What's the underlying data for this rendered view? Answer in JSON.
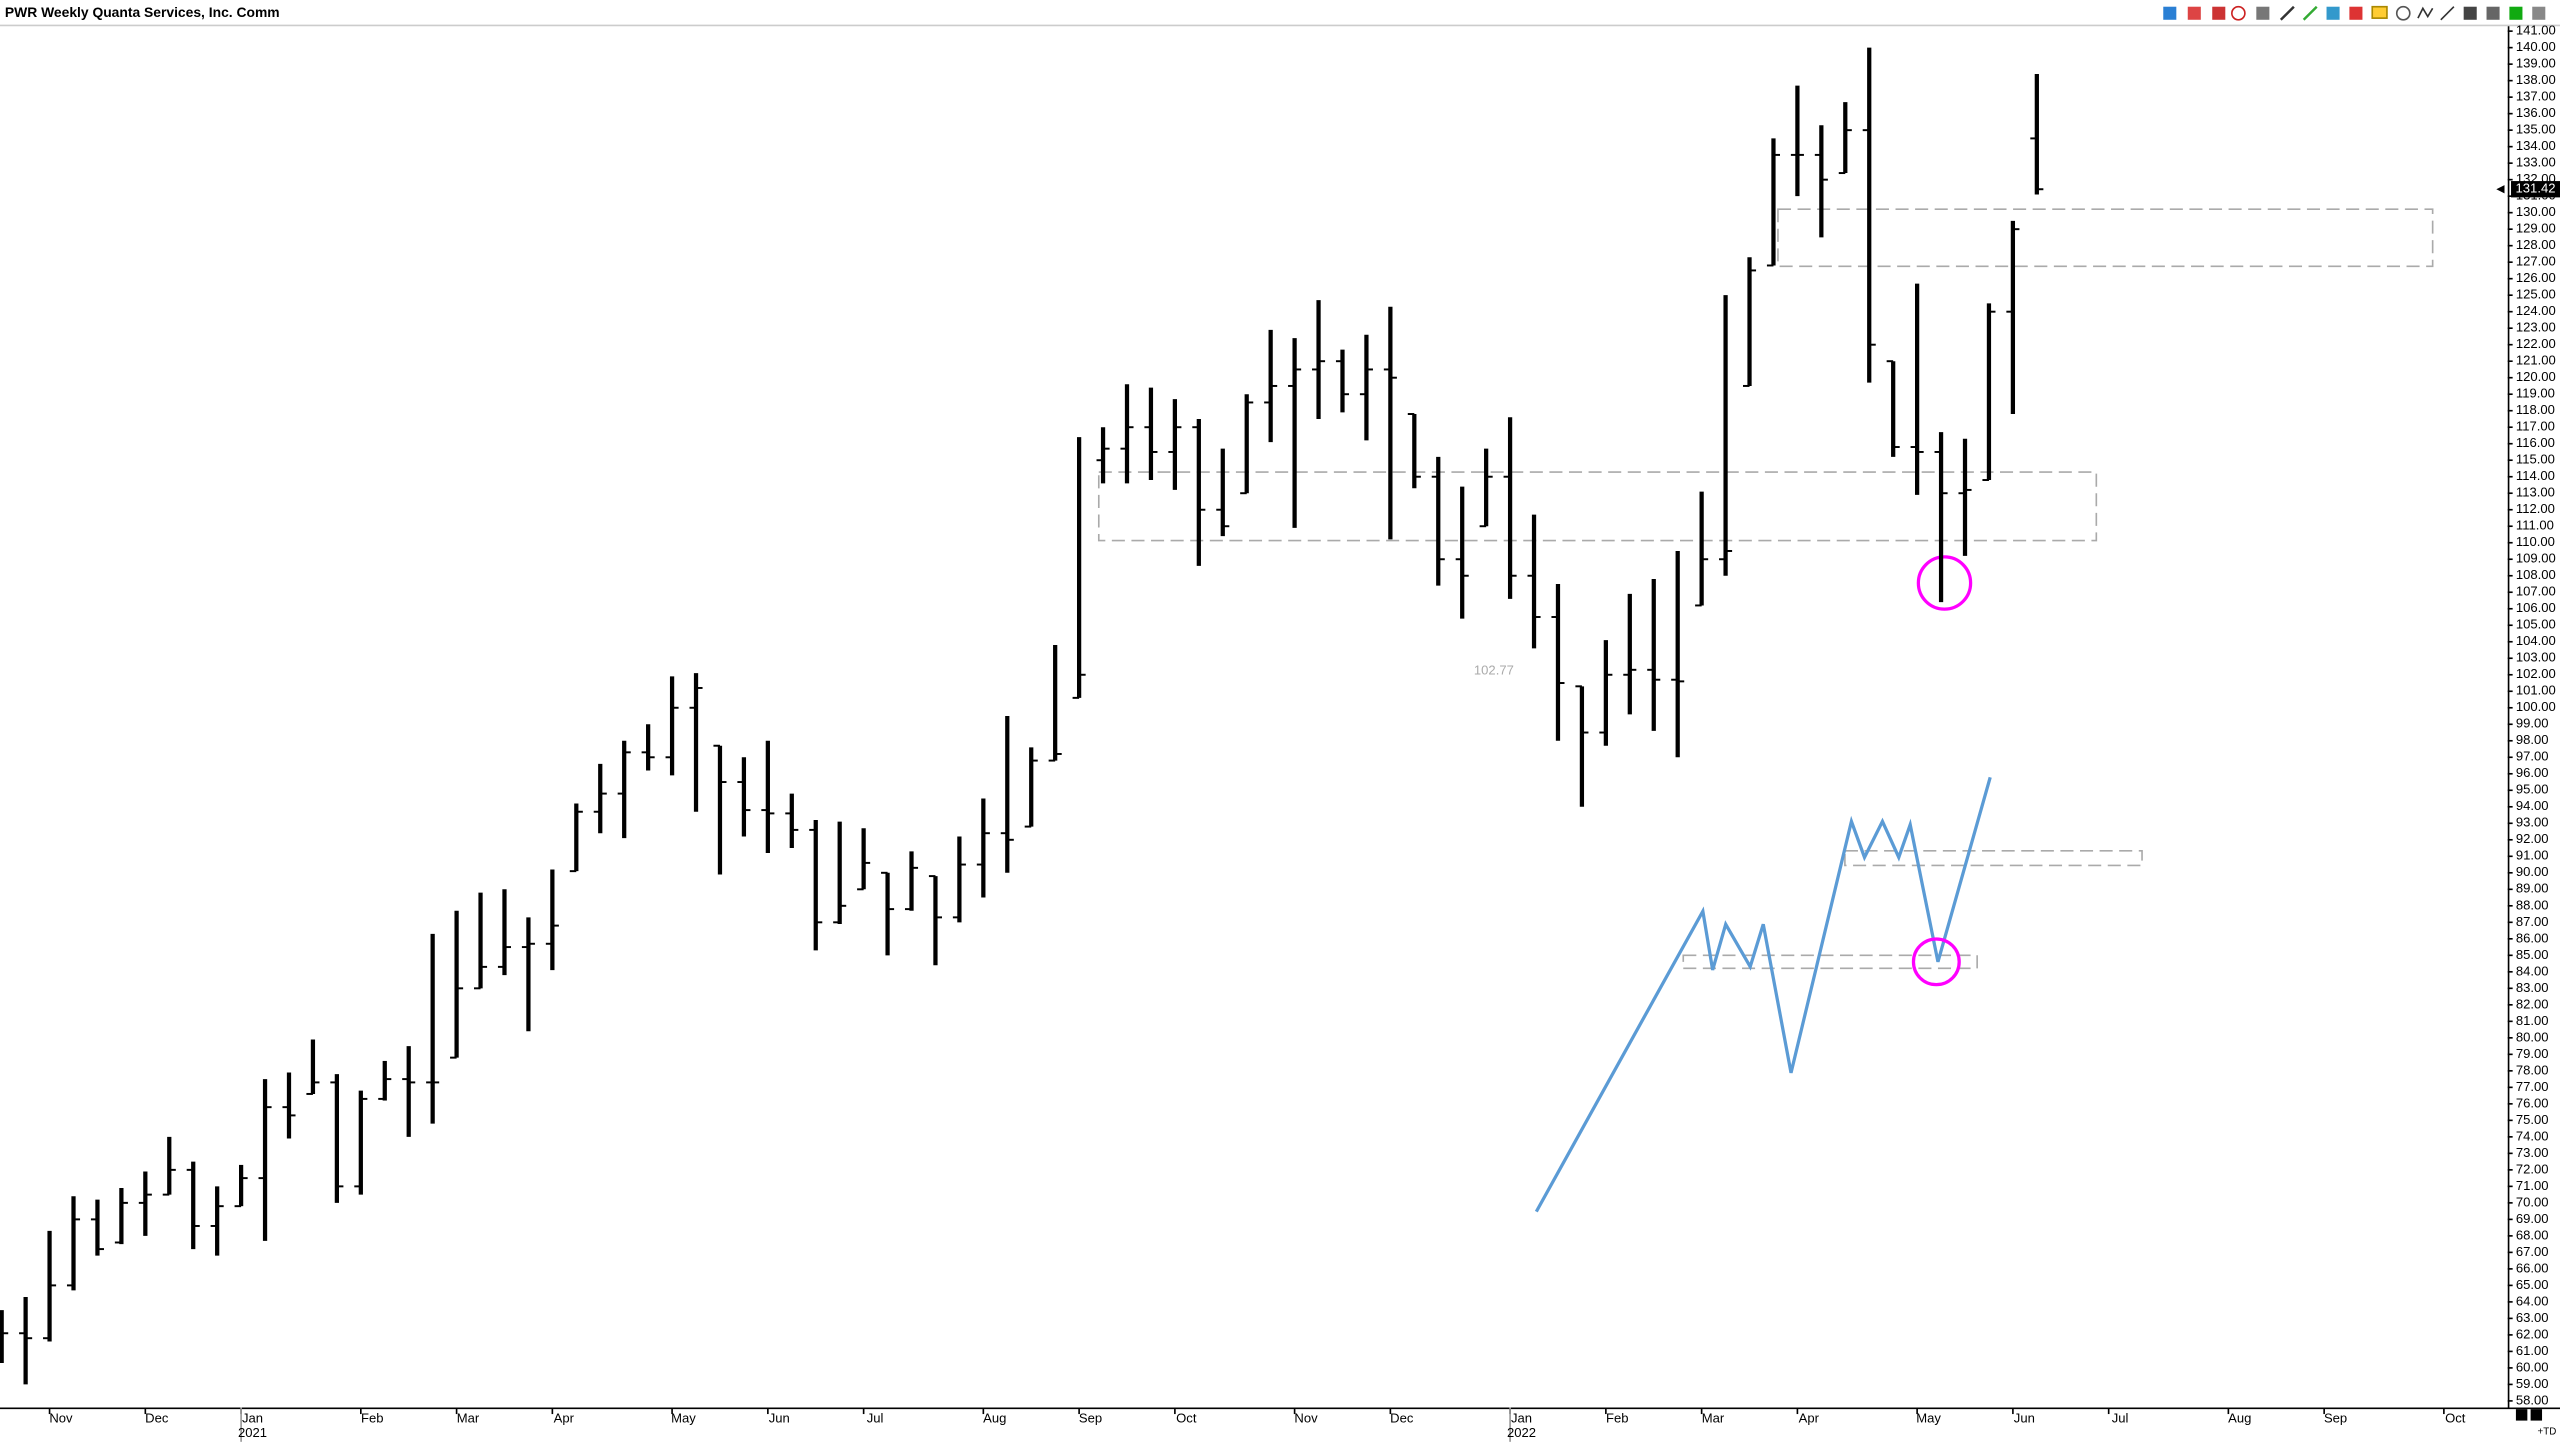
{
  "chart_data": {
    "type": "ohlc",
    "title": "PWR Weekly Quanta Services, Inc. Comm",
    "color": "#000000",
    "open": [
      61.5,
      62.1,
      61.8,
      65,
      69,
      67.6,
      70,
      70.5,
      72,
      68.6,
      69.8,
      71.5,
      75.8,
      76.6,
      77.3,
      71,
      76.3,
      77.5,
      77.3,
      78.8,
      83,
      84.3,
      85.5,
      85.7,
      90.1,
      93.7,
      94.8,
      97.3,
      97,
      100,
      97.7,
      95.5,
      93.8,
      93.6,
      92.6,
      87,
      89,
      90,
      87.8,
      89.8,
      87.3,
      90.5,
      92.4,
      92.8,
      96.8,
      100.6,
      115,
      115.7,
      117,
      115.5,
      117,
      112,
      113,
      118.5,
      119.5,
      120.5,
      121,
      119,
      120.5,
      117.8,
      114,
      109,
      111,
      114,
      108,
      105.5,
      101.3,
      98.5,
      102,
      102.3,
      101.7,
      106.2,
      109,
      119.5,
      126.8,
      133.5,
      133.5,
      132.4,
      135,
      121,
      115.8,
      115.5,
      113,
      113.8,
      124,
      134.5
    ],
    "high": [
      63.5,
      64.3,
      68.3,
      70.4,
      70.2,
      70.9,
      71.9,
      74,
      72.5,
      71,
      72.3,
      77.5,
      77.9,
      79.9,
      77.8,
      76.8,
      78.6,
      79.5,
      86.3,
      87.7,
      88.8,
      89,
      87.3,
      90.2,
      94.2,
      96.6,
      98,
      99,
      101.9,
      102.1,
      97.7,
      97,
      98,
      94.8,
      93.2,
      93.1,
      92.7,
      90,
      91.3,
      89.8,
      92.2,
      94.5,
      99.5,
      97.6,
      103.8,
      116.4,
      117,
      119.6,
      119.4,
      118.7,
      117.5,
      115.7,
      119,
      122.9,
      122.4,
      124.7,
      121.7,
      122.6,
      124.3,
      117.8,
      115.2,
      113.4,
      115.7,
      117.6,
      111.7,
      107.5,
      101.3,
      104.1,
      106.9,
      107.8,
      109.5,
      113.1,
      125,
      127.3,
      134.5,
      137.7,
      135.3,
      136.7,
      140,
      121,
      125.7,
      116.7,
      116.3,
      124.5,
      129.5,
      138.4
    ],
    "low": [
      60.3,
      59,
      61.6,
      64.7,
      66.8,
      67.5,
      68,
      70.5,
      67.2,
      66.8,
      69.8,
      67.7,
      73.9,
      76.6,
      70,
      70.5,
      76.2,
      74,
      74.8,
      78.8,
      83,
      83.8,
      80.4,
      84.1,
      90.1,
      92.4,
      92.1,
      96.2,
      95.9,
      93.7,
      89.9,
      92.2,
      91.2,
      91.5,
      85.3,
      86.9,
      89,
      85,
      87.7,
      84.4,
      87,
      88.5,
      90,
      92.8,
      96.8,
      100.6,
      113.6,
      113.6,
      113.8,
      113.2,
      108.6,
      110.4,
      113,
      116.1,
      110.9,
      117.5,
      117.9,
      116.2,
      110.2,
      113.3,
      107.4,
      105.4,
      111,
      106.6,
      103.6,
      98,
      94,
      97.7,
      99.6,
      98.6,
      97,
      106.2,
      108,
      119.5,
      126.8,
      131,
      128.5,
      132.4,
      119.7,
      115.2,
      112.9,
      106.4,
      109.2,
      113.8,
      117.8,
      131.1
    ],
    "close": [
      62.1,
      61.8,
      65,
      69,
      67.2,
      70,
      70.5,
      72,
      68.6,
      69.8,
      71.5,
      75.8,
      75.3,
      77.3,
      71,
      76.3,
      77.5,
      77.3,
      77.3,
      83,
      84.3,
      85.5,
      85.7,
      86.8,
      93.7,
      94.8,
      97.3,
      97,
      100,
      101.2,
      95.5,
      93.8,
      93.6,
      92.6,
      87,
      88,
      90.6,
      87.8,
      90.3,
      87.3,
      90.5,
      92.4,
      92,
      96.8,
      97.2,
      102,
      115.7,
      117,
      115.5,
      117,
      112,
      111,
      118.5,
      119.5,
      120.5,
      121,
      119,
      120.5,
      120,
      114,
      109,
      108,
      114,
      108,
      105.5,
      101.5,
      98.5,
      102,
      102.3,
      101.7,
      101.6,
      109,
      109.5,
      126.5,
      133.5,
      133.5,
      132,
      135,
      122,
      115.8,
      115.5,
      113,
      113.2,
      124,
      129,
      131.42
    ],
    "xlim": [
      -0.07,
      104.6
    ],
    "xticks": [
      {
        "value": 2,
        "label": "Nov"
      },
      {
        "value": 6,
        "label": "Dec"
      },
      {
        "value": 10,
        "label": "Jan"
      },
      {
        "value": 15,
        "label": "Feb"
      },
      {
        "value": 19,
        "label": "Mar"
      },
      {
        "value": 23,
        "label": "Apr"
      },
      {
        "value": 28,
        "label": "May"
      },
      {
        "value": 32,
        "label": "Jun"
      },
      {
        "value": 36,
        "label": "Jul"
      },
      {
        "value": 41,
        "label": "Aug"
      },
      {
        "value": 45,
        "label": "Sep"
      },
      {
        "value": 49,
        "label": "Oct"
      },
      {
        "value": 54,
        "label": "Nov"
      },
      {
        "value": 58,
        "label": "Dec"
      },
      {
        "value": 63,
        "label": "Jan"
      },
      {
        "value": 67,
        "label": "Feb"
      },
      {
        "value": 71,
        "label": "Mar"
      },
      {
        "value": 75,
        "label": "Apr"
      },
      {
        "value": 80,
        "label": "May"
      },
      {
        "value": 84,
        "label": "Jun"
      },
      {
        "value": 88,
        "label": "Jul"
      },
      {
        "value": 93,
        "label": "Aug"
      },
      {
        "value": 97,
        "label": "Sep"
      },
      {
        "value": 102,
        "label": "Oct"
      }
    ],
    "year_ticks": [
      {
        "value": 10,
        "label": "2021"
      },
      {
        "value": 63,
        "label": "2022"
      }
    ],
    "ylim": [
      57.5,
      141.5
    ],
    "yticks": [
      {
        "value": 58,
        "label": "58.00"
      },
      {
        "value": 59,
        "label": "59.00"
      },
      {
        "value": 60,
        "label": "60.00"
      },
      {
        "value": 61,
        "label": "61.00"
      },
      {
        "value": 62,
        "label": "62.00"
      },
      {
        "value": 63,
        "label": "63.00"
      },
      {
        "value": 64,
        "label": "64.00"
      },
      {
        "value": 65,
        "label": "65.00"
      },
      {
        "value": 66,
        "label": "66.00"
      },
      {
        "value": 67,
        "label": "67.00"
      },
      {
        "value": 68,
        "label": "68.00"
      },
      {
        "value": 69,
        "label": "69.00"
      },
      {
        "value": 70,
        "label": "70.00"
      },
      {
        "value": 71,
        "label": "71.00"
      },
      {
        "value": 72,
        "label": "72.00"
      },
      {
        "value": 73,
        "label": "73.00"
      },
      {
        "value": 74,
        "label": "74.00"
      },
      {
        "value": 75,
        "label": "75.00"
      },
      {
        "value": 76,
        "label": "76.00"
      },
      {
        "value": 77,
        "label": "77.00"
      },
      {
        "value": 78,
        "label": "78.00"
      },
      {
        "value": 79,
        "label": "79.00"
      },
      {
        "value": 80,
        "label": "80.00"
      },
      {
        "value": 81,
        "label": "81.00"
      },
      {
        "value": 82,
        "label": "82.00"
      },
      {
        "value": 83,
        "label": "83.00"
      },
      {
        "value": 84,
        "label": "84.00"
      },
      {
        "value": 85,
        "label": "85.00"
      },
      {
        "value": 86,
        "label": "86.00"
      },
      {
        "value": 87,
        "label": "87.00"
      },
      {
        "value": 88,
        "label": "88.00"
      },
      {
        "value": 89,
        "label": "89.00"
      },
      {
        "value": 90,
        "label": "90.00"
      },
      {
        "value": 91,
        "label": "91.00"
      },
      {
        "value": 92,
        "label": "92.00"
      },
      {
        "value": 93,
        "label": "93.00"
      },
      {
        "value": 94,
        "label": "94.00"
      },
      {
        "value": 95,
        "label": "95.00"
      },
      {
        "value": 96,
        "label": "96.00"
      },
      {
        "value": 97,
        "label": "97.00"
      },
      {
        "value": 98,
        "label": "98.00"
      },
      {
        "value": 99,
        "label": "99.00"
      },
      {
        "value": 100,
        "label": "100.00"
      },
      {
        "value": 101,
        "label": "101.00"
      },
      {
        "value": 102,
        "label": "102.00"
      },
      {
        "value": 103,
        "label": "103.00"
      },
      {
        "value": 104,
        "label": "104.00"
      },
      {
        "value": 105,
        "label": "105.00"
      },
      {
        "value": 106,
        "label": "106.00"
      },
      {
        "value": 107,
        "label": "107.00"
      },
      {
        "value": 108,
        "label": "108.00"
      },
      {
        "value": 109,
        "label": "109.00"
      },
      {
        "value": 110,
        "label": "110.00"
      },
      {
        "value": 111,
        "label": "111.00"
      },
      {
        "value": 112,
        "label": "112.00"
      },
      {
        "value": 113,
        "label": "113.00"
      },
      {
        "value": 114,
        "label": "114.00"
      },
      {
        "value": 115,
        "label": "115.00"
      },
      {
        "value": 116,
        "label": "116.00"
      },
      {
        "value": 117,
        "label": "117.00"
      },
      {
        "value": 118,
        "label": "118.00"
      },
      {
        "value": 119,
        "label": "119.00"
      },
      {
        "value": 120,
        "label": "120.00"
      },
      {
        "value": 121,
        "label": "121.00"
      },
      {
        "value": 122,
        "label": "122.00"
      },
      {
        "value": 123,
        "label": "123.00"
      },
      {
        "value": 124,
        "label": "124.00"
      },
      {
        "value": 125,
        "label": "125.00"
      },
      {
        "value": 126,
        "label": "126.00"
      },
      {
        "value": 127,
        "label": "127.00"
      },
      {
        "value": 128,
        "label": "128.00"
      },
      {
        "value": 129,
        "label": "129.00"
      },
      {
        "value": 130,
        "label": "130.00"
      },
      {
        "value": 131,
        "label": "131.00"
      },
      {
        "value": 132,
        "label": "132.00"
      },
      {
        "value": 133,
        "label": "133.00"
      },
      {
        "value": 134,
        "label": "134.00"
      },
      {
        "value": 135,
        "label": "135.00"
      },
      {
        "value": 136,
        "label": "136.00"
      },
      {
        "value": 137,
        "label": "137.00"
      },
      {
        "value": 138,
        "label": "138.00"
      },
      {
        "value": 139,
        "label": "139.00"
      },
      {
        "value": 140,
        "label": "140.00"
      },
      {
        "value": 141,
        "label": "141.00"
      }
    ],
    "annotation": "102.77",
    "corner_label": "+TD"
  }
}
